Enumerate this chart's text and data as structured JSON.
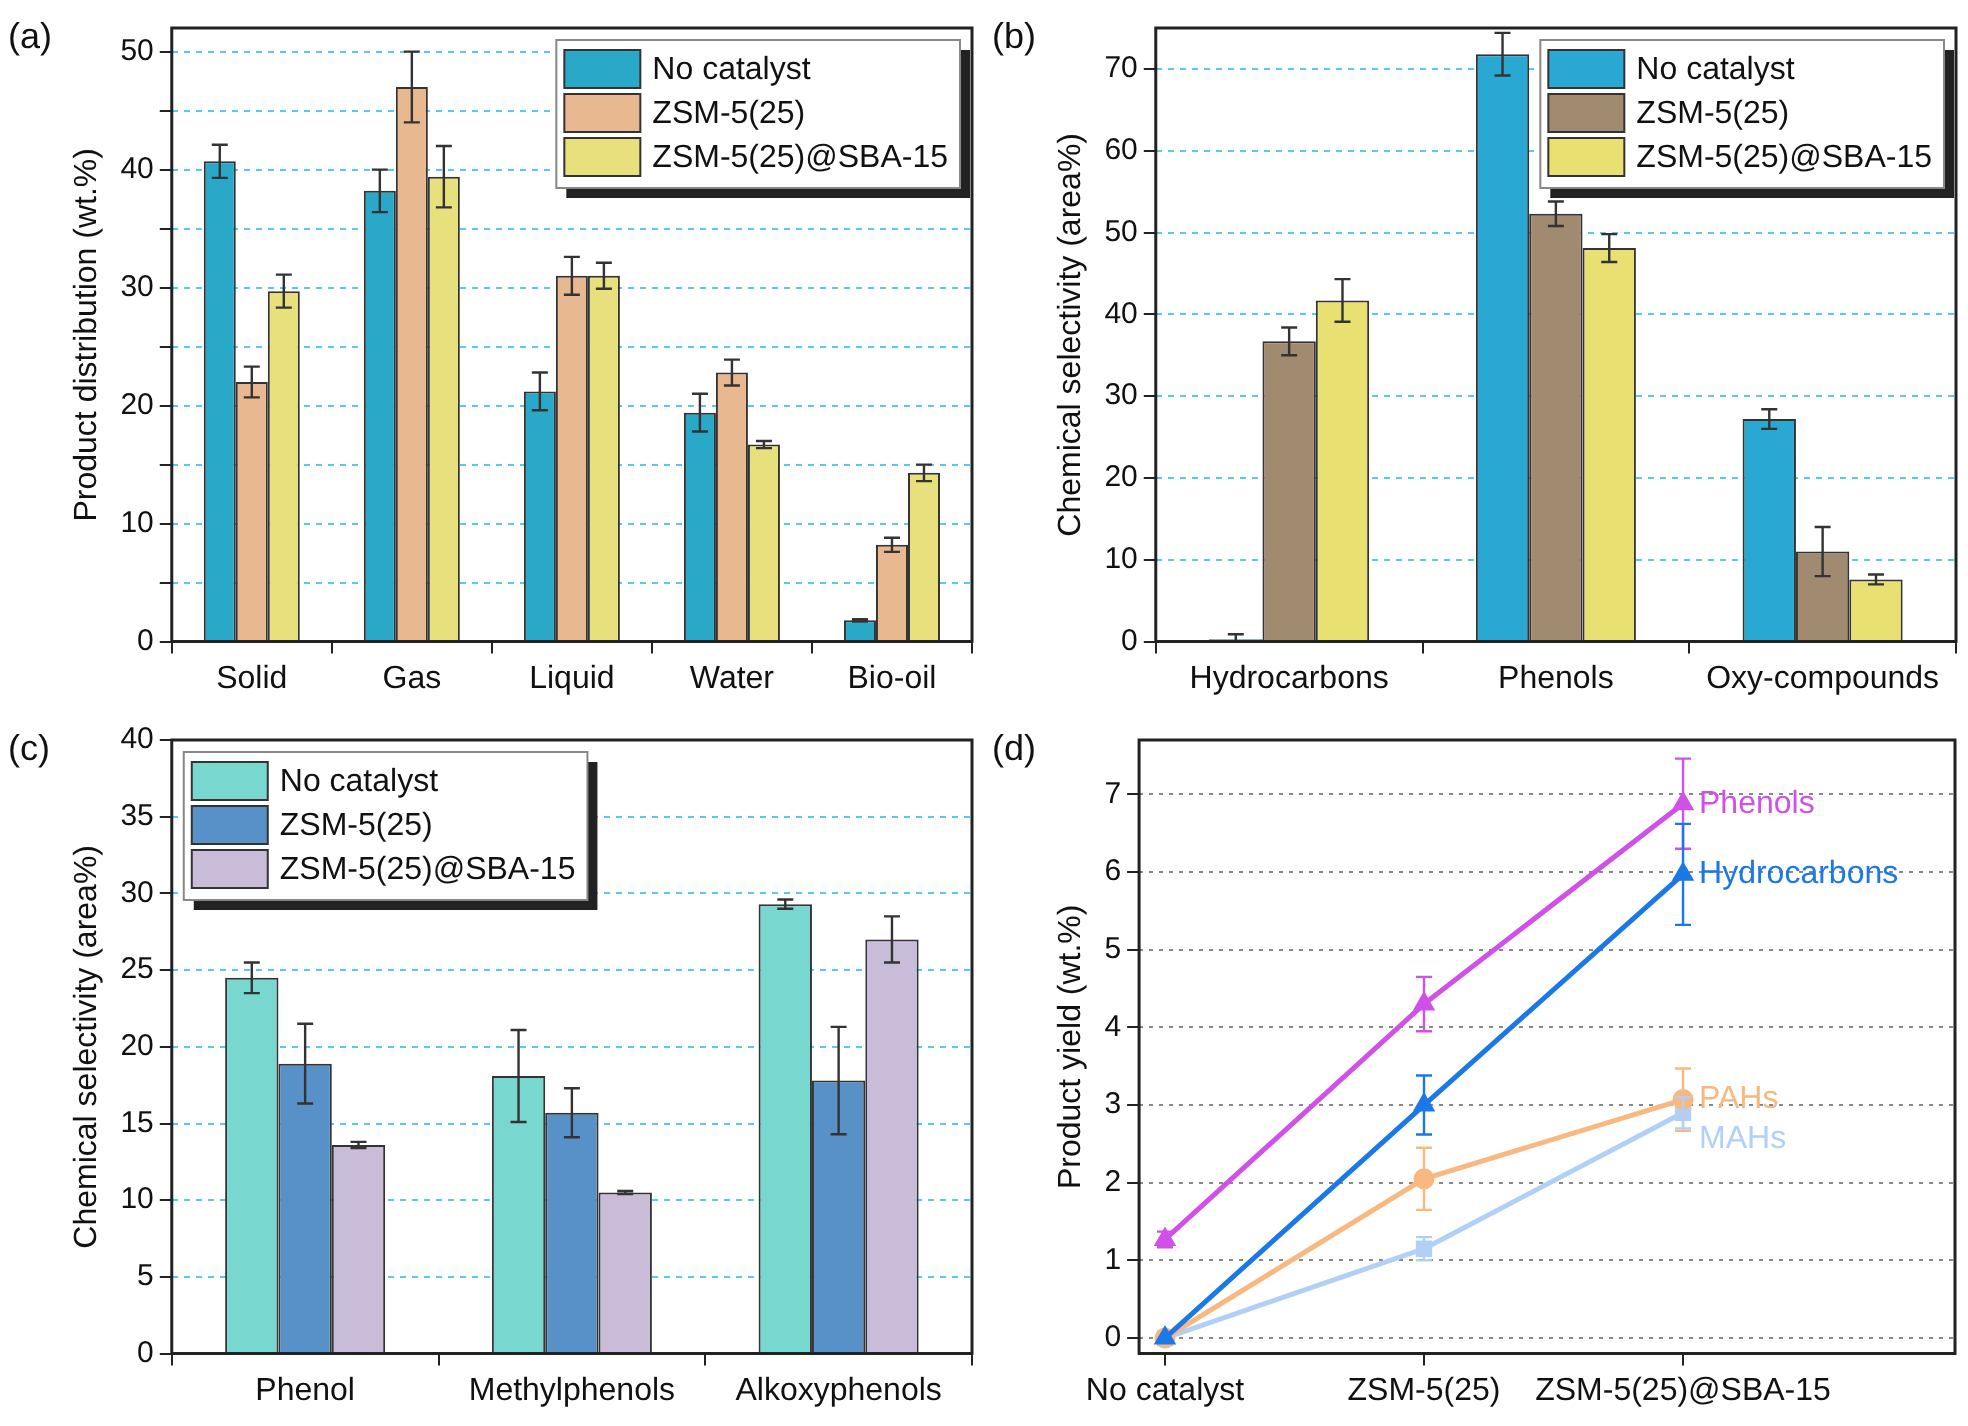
{
  "chart_data": [
    {
      "type": "bar",
      "title": "(a)",
      "ylabel": "Product distribution (wt.%)",
      "categories": [
        "Solid",
        "Gas",
        "Liquid",
        "Water",
        "Bio-oil"
      ],
      "series": [
        {
          "name": "No catalyst",
          "color": "#2aa8c8",
          "values": [
            40.7,
            38.2,
            21.2,
            19.4,
            1.8
          ],
          "errors": [
            1.4,
            1.8,
            1.6,
            1.6,
            0.1
          ]
        },
        {
          "name": "ZSM-5(25)",
          "color": "#e8b890",
          "values": [
            22,
            47,
            31,
            22.8,
            8.2
          ],
          "errors": [
            1.3,
            3,
            1.6,
            1.1,
            0.6
          ]
        },
        {
          "name": "ZSM-5(25)@SBA-15",
          "color": "#e8e07c",
          "values": [
            29.7,
            39.4,
            31,
            16.7,
            14.3
          ],
          "errors": [
            1.4,
            2.6,
            1.1,
            0.3,
            0.7
          ]
        }
      ],
      "ylim": [
        0,
        52
      ],
      "yticks": [
        0,
        {
          "value": 5,
          "label": null
        },
        10,
        {
          "value": 15,
          "label": null
        },
        20,
        {
          "value": 25,
          "label": null
        },
        30,
        {
          "value": 35,
          "label": null
        },
        40,
        {
          "value": 45,
          "label": null
        },
        50
      ],
      "grid": "y",
      "legend": "top right"
    },
    {
      "type": "bar",
      "title": "(b)",
      "ylabel": "Chemical selectivity (area%)",
      "categories": [
        "Hydrocarbons",
        "Phenols",
        "Oxy-compounds"
      ],
      "series": [
        {
          "name": "No catalyst",
          "color": "#2aa8d4",
          "values": [
            0.3,
            71.8,
            27.2
          ],
          "errors": [
            [
              0.3,
              0.6
            ],
            2.6,
            1.2
          ]
        },
        {
          "name": "ZSM-5(25)",
          "color": "#a08a70",
          "values": [
            36.7,
            52.3,
            11
          ],
          "errors": [
            1.7,
            1.5,
            3
          ]
        },
        {
          "name": "ZSM-5(25)@SBA-15",
          "color": "#e8e070",
          "values": [
            41.7,
            48.1,
            7.6
          ],
          "errors": [
            2.6,
            1.7,
            0.6
          ]
        }
      ],
      "ylim": [
        0,
        75
      ],
      "yticks": [
        0,
        10,
        20,
        30,
        40,
        50,
        60,
        70
      ],
      "grid": "y",
      "legend": "top right"
    },
    {
      "type": "bar",
      "title": "(c)",
      "ylabel": "Chemical selectivity (area%)",
      "categories": [
        "Phenol",
        "Methylphenols",
        "Alkoxyphenols"
      ],
      "series": [
        {
          "name": "No catalyst",
          "color": "#78d8d0",
          "values": [
            24.5,
            18.1,
            29.3
          ],
          "errors": [
            1,
            3,
            0.3
          ]
        },
        {
          "name": "ZSM-5(25)",
          "color": "#5890c8",
          "values": [
            18.9,
            15.7,
            17.8
          ],
          "errors": [
            2.6,
            1.6,
            3.5
          ]
        },
        {
          "name": "ZSM-5(25)@SBA-15",
          "color": "#c8bcd8",
          "values": [
            13.6,
            10.5,
            27
          ],
          "errors": [
            0.2,
            0.1,
            1.5
          ]
        }
      ],
      "ylim": [
        0,
        40
      ],
      "yticks": [
        0,
        5,
        10,
        15,
        20,
        25,
        30,
        35,
        40
      ],
      "grid": "y",
      "legend": "top left"
    },
    {
      "type": "line",
      "title": "(d)",
      "ylabel": "Product yield (wt.%)",
      "categories": [
        "No catalyst",
        "ZSM-5(25)",
        "ZSM-5(25)@SBA-15"
      ],
      "series": [
        {
          "name": "Phenols",
          "color": "#d050e8",
          "marker": "triangle",
          "values": [
            1.27,
            4.3,
            6.88
          ],
          "errors": [
            0.1,
            0.35,
            0.58
          ]
        },
        {
          "name": "Hydrocarbons",
          "color": "#1a78e8",
          "marker": "triangle",
          "values": [
            0,
            3,
            5.97
          ],
          "errors": [
            null,
            0.38,
            0.65
          ]
        },
        {
          "name": "PAHs",
          "color": "#f8b880",
          "marker": "circle",
          "values": [
            0,
            2.05,
            3.07
          ],
          "errors": [
            null,
            0.4,
            0.4
          ]
        },
        {
          "name": "MAHs",
          "color": "#b0d0f8",
          "marker": "square",
          "values": [
            0,
            1.15,
            2.9
          ],
          "errors": [
            null,
            0.15,
            0.2
          ]
        }
      ],
      "ylim": [
        -0.2,
        7.7
      ],
      "yticks": [
        0,
        1,
        2,
        3,
        4,
        5,
        6,
        7
      ],
      "grid": "y",
      "line_style": "solid"
    }
  ]
}
